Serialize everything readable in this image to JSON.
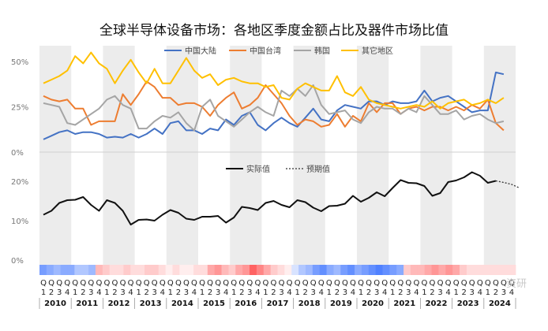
{
  "chart_data": {
    "title": "全球半导体设备市场：各地区季度金额占比及器件市场比值",
    "type": "line",
    "x_quarter_labels": [
      "Q1",
      "Q2",
      "Q3",
      "Q4"
    ],
    "years": [
      "2010",
      "2011",
      "2012",
      "2013",
      "2014",
      "2015",
      "2016",
      "2017",
      "2018",
      "2019",
      "2020",
      "2021",
      "2022",
      "2023",
      "2024"
    ],
    "top_panel": {
      "type": "line",
      "y_ticks": [
        "50%",
        "25%",
        "0%"
      ],
      "ylim": [
        0,
        57
      ],
      "series": [
        {
          "name": "中国大陆",
          "color": "#4472c4",
          "values": [
            7,
            9,
            11,
            12,
            10,
            11,
            11,
            10,
            8,
            8.5,
            8,
            10,
            8,
            10,
            13,
            10,
            16,
            17,
            12,
            12,
            10,
            13,
            12,
            18,
            15,
            20,
            22,
            15,
            12,
            16,
            19,
            16,
            14,
            19,
            24,
            18,
            17,
            23,
            26,
            25,
            24,
            28,
            28,
            26,
            28,
            27,
            27,
            28,
            34,
            28,
            30,
            31,
            28,
            25,
            22,
            23,
            23,
            44,
            43
          ]
        },
        {
          "name": "中国台湾",
          "color": "#ed7d31",
          "values": [
            31,
            29,
            28,
            29,
            24,
            24,
            15,
            17,
            17,
            17,
            32,
            26,
            32,
            39,
            36,
            30,
            30,
            26,
            27,
            27,
            25,
            20,
            26,
            30,
            33,
            24,
            26,
            30,
            37,
            32,
            27,
            20,
            15,
            18,
            17,
            14,
            15,
            21,
            14,
            20,
            17,
            27,
            22,
            27,
            27,
            21,
            24,
            25,
            23,
            25,
            25,
            23,
            25,
            23,
            26,
            24,
            29,
            16,
            12
          ]
        },
        {
          "name": "韩国",
          "color": "#a5a5a5",
          "values": [
            27,
            26,
            25,
            16,
            15,
            18,
            21,
            24,
            29,
            31,
            26,
            24,
            13,
            13,
            17,
            20,
            19,
            22,
            16,
            12,
            25,
            29,
            20,
            17,
            14,
            18,
            22,
            25,
            22,
            20,
            34,
            31,
            35,
            31,
            37,
            26,
            21,
            22,
            23,
            18,
            16,
            22,
            25,
            24,
            24,
            21,
            24,
            22,
            31,
            26,
            21,
            21,
            23,
            18,
            20,
            21,
            18,
            16,
            17
          ]
        },
        {
          "name": "其它地区",
          "color": "#ffc000",
          "values": [
            38,
            40,
            42,
            45,
            53,
            49,
            55,
            49,
            46,
            38,
            45,
            51,
            44,
            38,
            46,
            38,
            38,
            45,
            52,
            45,
            41,
            43,
            37,
            40,
            41,
            39,
            38,
            38,
            36,
            37,
            30,
            29,
            35,
            38,
            36,
            34,
            34,
            42,
            33,
            31,
            36,
            29,
            27,
            26,
            25,
            24,
            25,
            26,
            25,
            28,
            24,
            27,
            28,
            29,
            26,
            27,
            29,
            27,
            30
          ]
        }
      ]
    },
    "bottom_panel": {
      "type": "line",
      "y_ticks": [
        "20%",
        "10%",
        "0%"
      ],
      "ylim": [
        0,
        25
      ],
      "series": [
        {
          "name": "实际值",
          "color": "#111111",
          "values": [
            11.5,
            12.5,
            14.5,
            15.2,
            15.3,
            16,
            14,
            12.5,
            15.2,
            14.5,
            12.5,
            9,
            10.2,
            10.3,
            10,
            11.5,
            12.7,
            12,
            10.5,
            10.2,
            11,
            11,
            11.2,
            9.5,
            10.8,
            13.5,
            13.2,
            12.7,
            14.5,
            15,
            14,
            13.4,
            15.2,
            14.7,
            13.3,
            12.4,
            13.7,
            13.8,
            14.3,
            16.3,
            14.8,
            15.8,
            17.2,
            16.2,
            18.3,
            20.3,
            19.6,
            19.5,
            18.8,
            16.3,
            17,
            19.8,
            20.2,
            21,
            22.3,
            21.4,
            19.6,
            20.1
          ]
        },
        {
          "name": "预期值",
          "color": "#333333",
          "dashed": true,
          "values": [
            20.1,
            19.7,
            19.2,
            18.3
          ]
        }
      ],
      "projected_start_index": 57
    },
    "heatmap_strip": {
      "type": "heatmap",
      "values": [
        -0.7,
        -0.6,
        -0.5,
        -0.6,
        -0.6,
        -0.4,
        -0.4,
        -0.5,
        0.4,
        0.3,
        0.2,
        0.2,
        0.3,
        0.2,
        0.2,
        0.3,
        0.3,
        0.2,
        0.1,
        0.2,
        0.1,
        0.1,
        0.2,
        0.2,
        0.5,
        0.6,
        0.4,
        0.3,
        0.5,
        0.6,
        0.9,
        0.7,
        0.5,
        0.3,
        0.2,
        0.1,
        -0.2,
        -0.4,
        -0.5,
        -0.7,
        -0.8,
        -0.6,
        -0.5,
        -0.7,
        -0.8,
        -0.6,
        -0.7,
        -0.8,
        -0.9,
        -0.8,
        -0.7,
        -0.6,
        0.3,
        0.4,
        0.4,
        0.5,
        0.6,
        0.5,
        0.6,
        0.5,
        0.3,
        0.2,
        0.2,
        0.2,
        0.2,
        0.2,
        0.2,
        0.2
      ]
    },
    "legend_top": [
      "中国大陆",
      "中国台湾",
      "韩国",
      "其它地区"
    ],
    "legend_bottom": [
      "实际值",
      "预期值"
    ],
    "grid": "alternating year bands"
  },
  "watermark": "资研"
}
